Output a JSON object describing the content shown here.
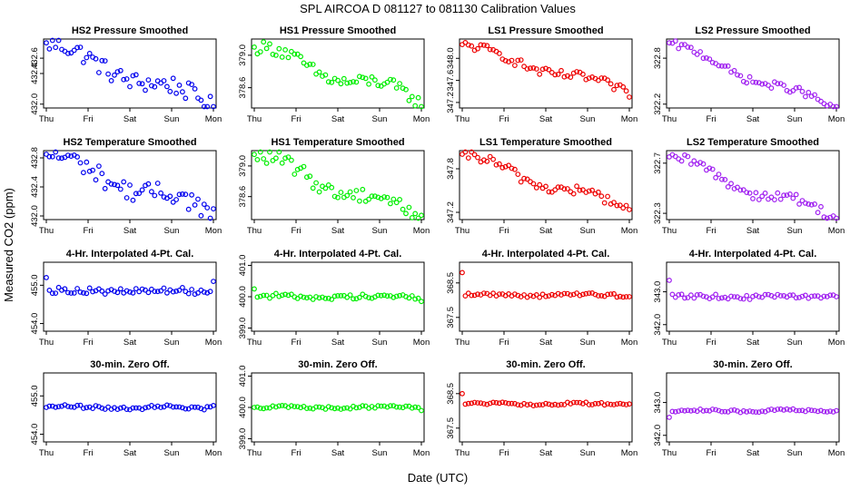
{
  "title": "SPL    AIRCOA D    081127 to 081130    Calibration Values",
  "xlabel": "Date (UTC)",
  "ylabel": "Measured CO2 (ppm)",
  "x_ticks": [
    "Thu",
    "Fri",
    "Sat",
    "Sun",
    "Mon"
  ],
  "colors": {
    "blue": "#0000ee",
    "green": "#00ee00",
    "red": "#ee0000",
    "purple": "#a020f0"
  },
  "chart_data": [
    {
      "type": "scatter",
      "title": "HS2 Pressure Smoothed",
      "color": "blue",
      "ylim": [
        431.95,
        432.85
      ],
      "yticks": [
        "432.0",
        "432.4",
        "432.6"
      ],
      "ytick_values": [
        432.0,
        432.4,
        432.6
      ],
      "x_range": [
        0,
        4
      ],
      "first": 432.8,
      "last": 432.0,
      "noise": 0.12,
      "wave": 0.07
    },
    {
      "type": "scatter",
      "title": "HS1 Pressure Smoothed",
      "color": "green",
      "ylim": [
        378.35,
        379.2
      ],
      "yticks": [
        "378.6",
        "379.0"
      ],
      "ytick_values": [
        378.6,
        379.0
      ],
      "x_range": [
        0,
        4
      ],
      "first": 379.1,
      "last": 378.45,
      "noise": 0.08,
      "wave": 0.08
    },
    {
      "type": "scatter",
      "title": "LS1 Pressure Smoothed",
      "color": "red",
      "ylim": [
        347.1,
        348.35
      ],
      "yticks": [
        "347.2",
        "347.6",
        "348.0"
      ],
      "ytick_values": [
        347.2,
        347.6,
        348.0
      ],
      "x_range": [
        0,
        4
      ],
      "first": 348.25,
      "last": 347.4,
      "noise": 0.08,
      "wave": 0.06
    },
    {
      "type": "scatter",
      "title": "LS2 Pressure Smoothed",
      "color": "purple",
      "ylim": [
        322.15,
        323.05
      ],
      "yticks": [
        "322.2",
        "322.8"
      ],
      "ytick_values": [
        322.2,
        322.8
      ],
      "x_range": [
        0,
        4
      ],
      "first": 323.0,
      "last": 322.15,
      "noise": 0.05,
      "wave": 0.05
    },
    {
      "type": "scatter",
      "title": "HS2 Temperature Smoothed",
      "color": "blue",
      "ylim": [
        431.95,
        432.9
      ],
      "yticks": [
        "432.0",
        "432.4",
        "432.8"
      ],
      "ytick_values": [
        432.0,
        432.4,
        432.8
      ],
      "x_range": [
        0,
        4
      ],
      "first": 432.85,
      "last": 432.05,
      "noise": 0.13,
      "wave": 0.08
    },
    {
      "type": "scatter",
      "title": "HS1 Temperature Smoothed",
      "color": "green",
      "ylim": [
        378.3,
        379.2
      ],
      "yticks": [
        "378.6",
        "379.0"
      ],
      "ytick_values": [
        378.6,
        379.0
      ],
      "x_range": [
        0,
        4
      ],
      "first": 379.15,
      "last": 378.35,
      "noise": 0.1,
      "wave": 0.08
    },
    {
      "type": "scatter",
      "title": "LS1 Temperature Smoothed",
      "color": "red",
      "ylim": [
        347.1,
        348.05
      ],
      "yticks": [
        "347.2",
        "347.8"
      ],
      "ytick_values": [
        347.2,
        347.8
      ],
      "x_range": [
        0,
        4
      ],
      "first": 348.0,
      "last": 347.25,
      "noise": 0.07,
      "wave": 0.06
    },
    {
      "type": "scatter",
      "title": "LS2 Temperature Smoothed",
      "color": "purple",
      "ylim": [
        322.25,
        322.8
      ],
      "yticks": [
        "322.3",
        "322.7"
      ],
      "ytick_values": [
        322.3,
        322.7
      ],
      "x_range": [
        0,
        4
      ],
      "first": 322.75,
      "last": 322.27,
      "noise": 0.04,
      "wave": 0.04
    },
    {
      "type": "scatter",
      "title": "4-Hr. Interpolated 4-Pt. Cal.",
      "color": "blue",
      "ylim": [
        453.8,
        455.6
      ],
      "yticks": [
        "454.0",
        "455.0"
      ],
      "ytick_values": [
        454.0,
        455.0
      ],
      "x_range": [
        0,
        4
      ],
      "base": 454.85,
      "first": 455.2,
      "last": 455.1,
      "noise": 0.08,
      "wave": 0.02
    },
    {
      "type": "scatter",
      "title": "4-Hr. Interpolated 4-Pt. Cal.",
      "color": "green",
      "ylim": [
        398.9,
        401.1
      ],
      "yticks": [
        "399.0",
        "400.0",
        "401.0"
      ],
      "ytick_values": [
        399.0,
        400.0,
        401.0
      ],
      "x_range": [
        0,
        4
      ],
      "base": 400.0,
      "first": 400.25,
      "last": 399.85,
      "noise": 0.08,
      "wave": 0.03
    },
    {
      "type": "scatter",
      "title": "4-Hr. Interpolated 4-Pt. Cal.",
      "color": "red",
      "ylim": [
        367.1,
        369.1
      ],
      "yticks": [
        "367.5",
        "368.5"
      ],
      "ytick_values": [
        367.5,
        368.5
      ],
      "x_range": [
        0,
        4
      ],
      "base": 368.15,
      "first": 368.8,
      "last": 368.1,
      "noise": 0.05,
      "wave": 0.02
    },
    {
      "type": "scatter",
      "title": "4-Hr. Interpolated 4-Pt. Cal.",
      "color": "purple",
      "ylim": [
        341.8,
        343.9
      ],
      "yticks": [
        "342.0",
        "343.0"
      ],
      "ytick_values": [
        342.0,
        343.0
      ],
      "x_range": [
        0,
        4
      ],
      "base": 342.85,
      "first": 343.35,
      "last": 342.85,
      "noise": 0.07,
      "wave": 0.02
    },
    {
      "type": "scatter",
      "title": "30-min. Zero Off.",
      "color": "blue",
      "ylim": [
        453.8,
        455.6
      ],
      "yticks": [
        "454.0",
        "455.0"
      ],
      "ytick_values": [
        454.0,
        455.0
      ],
      "x_range": [
        0,
        4
      ],
      "base": 454.7,
      "first": 454.7,
      "last": 454.75,
      "noise": 0.05,
      "wave": 0.02
    },
    {
      "type": "scatter",
      "title": "30-min. Zero Off.",
      "color": "green",
      "ylim": [
        398.9,
        401.1
      ],
      "yticks": [
        "399.0",
        "400.0",
        "401.0"
      ],
      "ytick_values": [
        399.0,
        400.0,
        401.0
      ],
      "x_range": [
        0,
        4
      ],
      "base": 400.0,
      "first": 400.0,
      "last": 399.9,
      "noise": 0.05,
      "wave": 0.02
    },
    {
      "type": "scatter",
      "title": "30-min. Zero Off.",
      "color": "red",
      "ylim": [
        367.1,
        369.1
      ],
      "yticks": [
        "367.5",
        "368.5"
      ],
      "ytick_values": [
        367.5,
        368.5
      ],
      "x_range": [
        0,
        4
      ],
      "base": 368.2,
      "first": 368.5,
      "last": 368.2,
      "noise": 0.04,
      "wave": 0.02
    },
    {
      "type": "scatter",
      "title": "30-min. Zero Off.",
      "color": "purple",
      "ylim": [
        341.8,
        343.9
      ],
      "yticks": [
        "342.0",
        "343.0"
      ],
      "ytick_values": [
        342.0,
        343.0
      ],
      "x_range": [
        0,
        4
      ],
      "base": 342.75,
      "first": 342.55,
      "last": 342.75,
      "noise": 0.04,
      "wave": 0.02
    }
  ]
}
